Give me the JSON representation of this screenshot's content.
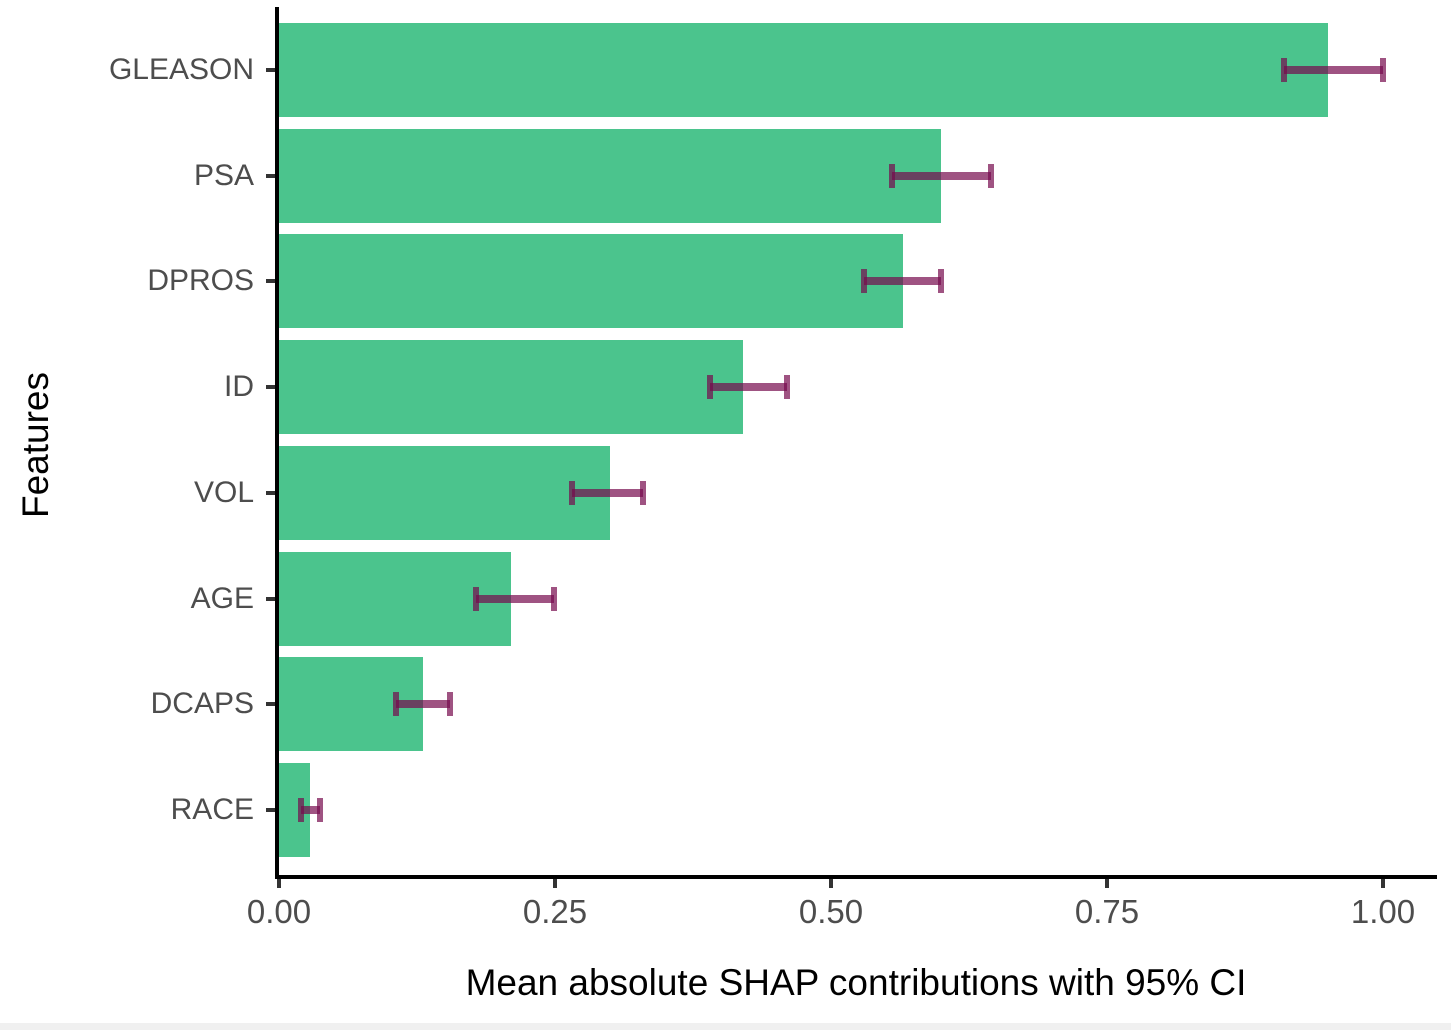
{
  "chart_data": {
    "type": "bar",
    "orientation": "horizontal",
    "title": "",
    "xlabel": "Mean absolute SHAP contributions with 95% CI",
    "ylabel": "Features",
    "categories": [
      "GLEASON",
      "PSA",
      "DPROS",
      "ID",
      "VOL",
      "AGE",
      "DCAPS",
      "RACE"
    ],
    "series": [
      {
        "name": "Mean absolute SHAP contribution",
        "values": [
          0.95,
          0.6,
          0.565,
          0.42,
          0.3,
          0.21,
          0.13,
          0.028
        ],
        "ci_low": [
          0.91,
          0.555,
          0.53,
          0.39,
          0.265,
          0.178,
          0.106,
          0.02
        ],
        "ci_high": [
          1.0,
          0.645,
          0.6,
          0.46,
          0.33,
          0.249,
          0.155,
          0.037
        ]
      }
    ],
    "xlim": [
      0,
      1.05
    ],
    "xtick_labels": [
      "0.00",
      "0.25",
      "0.50",
      "0.75",
      "1.00"
    ],
    "xtick_values": [
      0,
      0.25,
      0.5,
      0.75,
      1.0
    ],
    "grid": false,
    "legend": "none",
    "colors": {
      "bar": "#4bc48d",
      "error_bar": "rgba(118, 10, 77, 0.7)",
      "axis_line": "#000000",
      "tick_label": "#4d4d4d",
      "axis_title": "#000000"
    }
  }
}
